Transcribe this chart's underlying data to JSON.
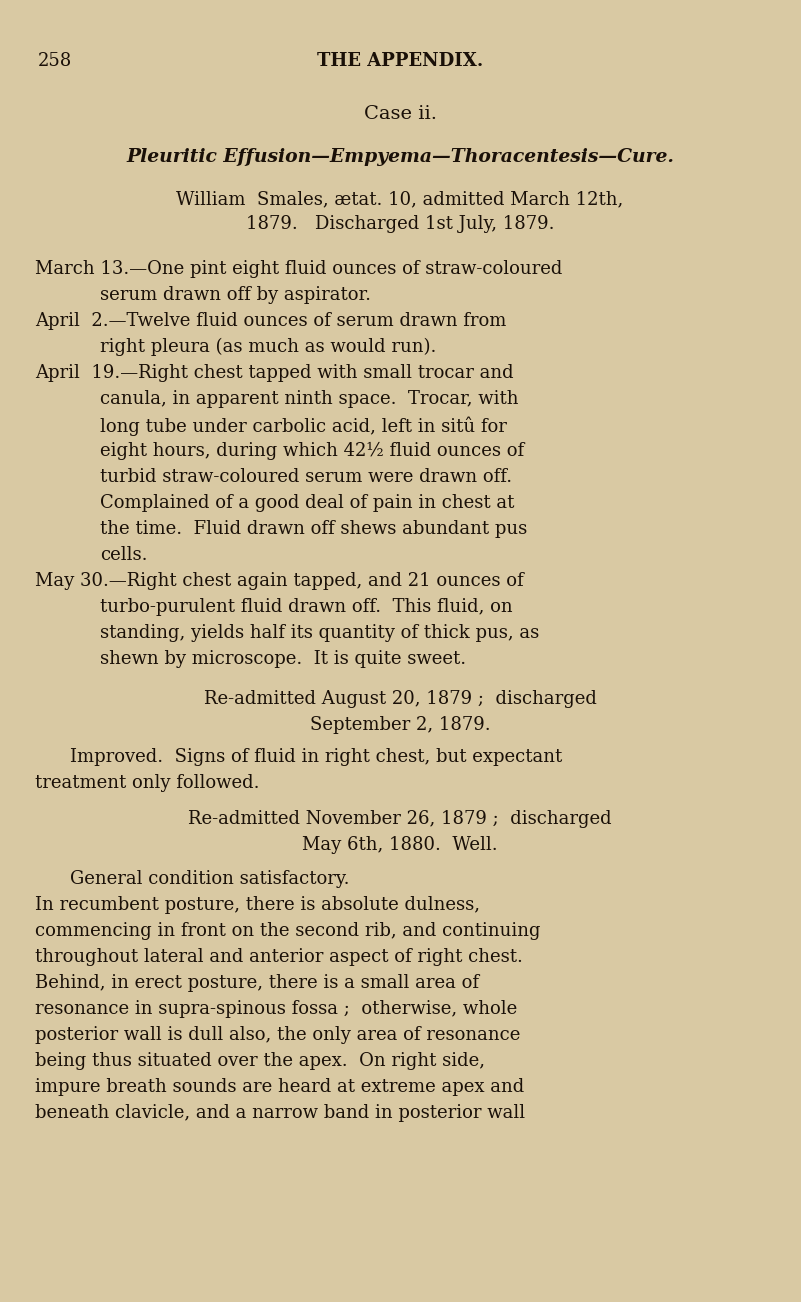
{
  "bg_color": "#d9c9a3",
  "text_color": "#1a1008",
  "page_number": "258",
  "header": "THE APPENDIX.",
  "case_title": "Case ii.",
  "subtitle": "Pleuritic Effusion—Empyema—Thoracentesis—Cure.",
  "patient_line1": "William  Smales, ætat. 10, admitted March 12th,",
  "patient_line2": "1879.   Discharged 1st July, 1879.",
  "body_lines": [
    {
      "indent": "left",
      "text": "March 13.—One pint eight fluid ounces of straw-coloured"
    },
    {
      "indent": "cont",
      "text": "serum drawn off by aspirator."
    },
    {
      "indent": "left",
      "text": "April  2.—Twelve fluid ounces of serum drawn from"
    },
    {
      "indent": "cont",
      "text": "right pleura (as much as would run)."
    },
    {
      "indent": "left",
      "text": "April  19.—Right chest tapped with small trocar and"
    },
    {
      "indent": "cont",
      "text": "canula, in apparent ninth space.  Trocar, with"
    },
    {
      "indent": "cont",
      "text": "long tube under carbolic acid, left in sitû for"
    },
    {
      "indent": "cont",
      "text": "eight hours, during which 42½ fluid ounces of"
    },
    {
      "indent": "cont",
      "text": "turbid straw-coloured serum were drawn off."
    },
    {
      "indent": "cont",
      "text": "Complained of a good deal of pain in chest at"
    },
    {
      "indent": "cont",
      "text": "the time.  Fluid drawn off shews abundant pus"
    },
    {
      "indent": "cont",
      "text": "cells."
    },
    {
      "indent": "left",
      "text": "May 30.—Right chest again tapped, and 21 ounces of"
    },
    {
      "indent": "cont",
      "text": "turbo-purulent fluid drawn off.  This fluid, on"
    },
    {
      "indent": "cont",
      "text": "standing, yields half its quantity of thick pus, as"
    },
    {
      "indent": "cont",
      "text": "shewn by microscope.  It is quite sweet."
    }
  ],
  "readmit1_line1": "Re-admitted August 20, 1879 ;  discharged",
  "readmit1_line2": "September 2, 1879.",
  "improved_line1": "Improved.  Signs of fluid in right chest, but expectant",
  "improved_line2": "treatment only followed.",
  "readmit2_line1": "Re-admitted November 26, 1879 ;  discharged",
  "readmit2_line2": "May 6th, 1880.  Well.",
  "general_line": "General condition satisfactory.",
  "final_lines": [
    "In recumbent posture, there is absolute dulness,",
    "commencing in front on the second rib, and continuing",
    "throughout lateral and anterior aspect of right chest.",
    "Behind, in erect posture, there is a small area of",
    "resonance in supra-spinous fossa ;  otherwise, whole",
    "posterior wall is dull also, the only area of resonance",
    "being thus situated over the apex.  On right side,",
    "impure breath sounds are heard at extreme apex and",
    "beneath clavicle, and a narrow band in posterior wall"
  ]
}
